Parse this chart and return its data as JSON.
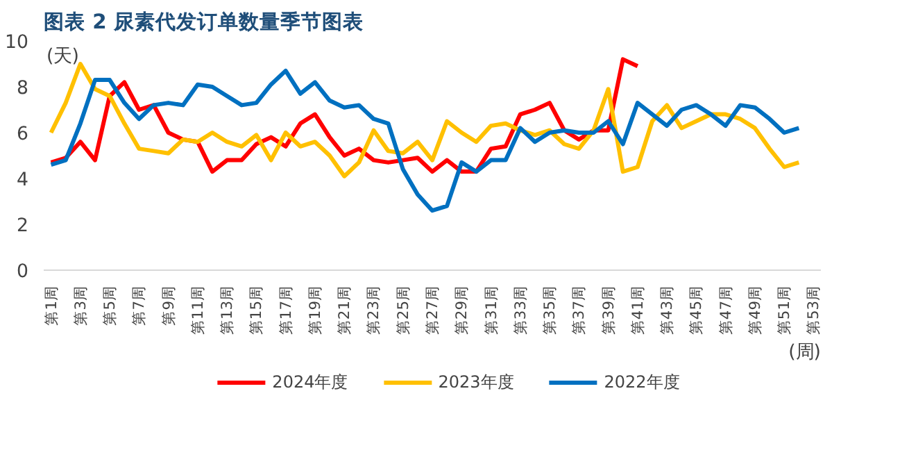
{
  "chart_data": {
    "type": "line",
    "title": "图表 2 尿素代发订单数量季节图表",
    "ylabel": "(天)",
    "xlabel": "(周)",
    "categories": [
      "第1周",
      null,
      "第3周",
      null,
      "第5周",
      null,
      "第7周",
      null,
      "第9周",
      null,
      "第11周",
      null,
      "第13周",
      null,
      "第15周",
      null,
      "第17周",
      null,
      "第19周",
      null,
      "第21周",
      null,
      "第23周",
      null,
      "第25周",
      null,
      "第27周",
      null,
      "第29周",
      null,
      "第31周",
      null,
      "第33周",
      null,
      "第35周",
      null,
      "第37周",
      null,
      "第39周",
      null,
      "第41周",
      null,
      "第43周",
      null,
      "第45周",
      null,
      "第47周",
      null,
      "第49周",
      null,
      "第51周",
      null,
      "第53周"
    ],
    "ylim": [
      0,
      10
    ],
    "yticks": [
      0,
      2,
      4,
      6,
      8,
      10
    ],
    "grid": false,
    "legend": "bottom",
    "marker": "none",
    "line_style": "solid",
    "series": [
      {
        "name": "2024年度",
        "color": "#ff0000",
        "values": [
          4.7,
          4.9,
          5.6,
          4.8,
          7.6,
          8.2,
          7.0,
          7.2,
          6.0,
          5.7,
          5.6,
          4.3,
          4.8,
          4.8,
          5.5,
          5.8,
          5.4,
          6.4,
          6.8,
          5.8,
          5.0,
          5.3,
          4.8,
          4.7,
          4.8,
          4.9,
          4.3,
          4.8,
          4.3,
          4.3,
          5.3,
          5.4,
          6.8,
          7.0,
          7.3,
          6.1,
          5.7,
          6.1,
          6.1,
          9.2,
          8.9,
          null,
          null,
          null,
          null,
          null,
          null,
          null,
          null,
          null,
          null,
          null,
          null
        ]
      },
      {
        "name": "2023年度",
        "color": "#ffc000",
        "values": [
          6.0,
          7.3,
          9.0,
          7.9,
          7.6,
          6.4,
          5.3,
          5.2,
          5.1,
          5.7,
          5.6,
          6.0,
          5.6,
          5.4,
          5.9,
          4.8,
          6.0,
          5.4,
          5.6,
          5.0,
          4.1,
          4.7,
          6.1,
          5.2,
          5.1,
          5.6,
          4.8,
          6.5,
          6.0,
          5.6,
          6.3,
          6.4,
          6.1,
          5.9,
          6.1,
          5.5,
          5.3,
          6.1,
          7.9,
          4.3,
          4.5,
          6.5,
          7.2,
          6.2,
          6.5,
          6.8,
          6.8,
          6.6,
          6.2,
          5.3,
          4.5,
          4.7,
          null
        ]
      },
      {
        "name": "2022年度",
        "color": "#0070c0",
        "values": [
          4.6,
          4.8,
          6.4,
          8.3,
          8.3,
          7.3,
          6.6,
          7.2,
          7.3,
          7.2,
          8.1,
          8.0,
          7.6,
          7.2,
          7.3,
          8.1,
          8.7,
          7.7,
          8.2,
          7.4,
          7.1,
          7.2,
          6.6,
          6.4,
          4.4,
          3.3,
          2.6,
          2.8,
          4.7,
          4.3,
          4.8,
          4.8,
          6.2,
          5.6,
          6.0,
          6.1,
          6.0,
          6.0,
          6.5,
          5.5,
          7.3,
          6.8,
          6.3,
          7.0,
          7.2,
          6.8,
          6.3,
          7.2,
          7.1,
          6.6,
          6.0,
          6.2,
          null
        ]
      }
    ]
  }
}
